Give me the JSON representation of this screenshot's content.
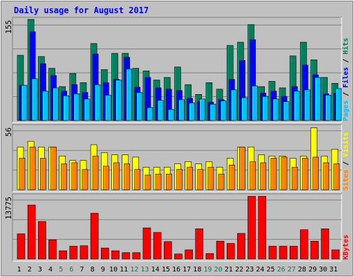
{
  "title": "Daily usage for August 2017",
  "colors": {
    "background": "#C0C0C0",
    "plot_bg": "#C0C0C0",
    "title": "#0000FF",
    "hits": "#00805C",
    "files": "#0000FF",
    "pages": "#00C0FF",
    "visits": "#FFFF00",
    "sites": "#FF8000",
    "kbytes": "#FF0000",
    "weekend_label": "#00805C",
    "weekday_label": "#000000"
  },
  "panels": {
    "top": {
      "max_label": "155",
      "legend": [
        "Pages",
        "Files",
        "Hits"
      ]
    },
    "middle": {
      "max_label": "56",
      "legend": [
        "Sites",
        "Visits"
      ]
    },
    "bottom": {
      "max_label": "13775",
      "legend": [
        "KBytes"
      ]
    }
  },
  "chart_data": {
    "type": "bar",
    "title": "Daily usage for August 2017",
    "categories": [
      "1",
      "2",
      "3",
      "4",
      "5",
      "6",
      "7",
      "8",
      "9",
      "10",
      "11",
      "12",
      "13",
      "14",
      "15",
      "16",
      "17",
      "18",
      "19",
      "20",
      "21",
      "22",
      "23",
      "24",
      "25",
      "26",
      "27",
      "28",
      "29",
      "30",
      "31"
    ],
    "weekend_days": [
      "5",
      "6",
      "12",
      "13",
      "19",
      "20",
      "26",
      "27"
    ],
    "panels": [
      {
        "name": "top",
        "ylim": [
          0,
          155
        ],
        "series": [
          {
            "name": "Hits",
            "values": [
              100,
              155,
              98,
              80,
              52,
              72,
              58,
              118,
              78,
              103,
              103,
              80,
              76,
              62,
              66,
              82,
              55,
              40,
              58,
              48,
              115,
              120,
              147,
              52,
              60,
              50,
              99,
              120,
              93,
              66,
              57
            ]
          },
          {
            "name": "Files",
            "values": [
              54,
              136,
              87,
              69,
              45,
              55,
              43,
              102,
              58,
              63,
              97,
              51,
              66,
              50,
              48,
              46,
              34,
              29,
              28,
              32,
              63,
              92,
              124,
              42,
              45,
              37,
              52,
              85,
              70,
              41,
              42
            ]
          },
          {
            "name": "Pages",
            "values": [
              54,
              64,
              45,
              50,
              38,
              41,
              33,
              55,
              39,
              62,
              79,
              43,
              20,
              31,
              17,
              32,
              27,
              33,
              25,
              30,
              47,
              35,
              53,
              37,
              33,
              29,
              45,
              47,
              66,
              39,
              49
            ]
          }
        ]
      },
      {
        "name": "middle",
        "ylim": [
          0,
          56
        ],
        "series": [
          {
            "name": "Visits",
            "values": [
              38,
              43,
              38,
              38,
              30,
              26,
              26,
              40,
              33,
              31,
              31,
              29,
              20,
              20,
              20,
              23,
              25,
              23,
              25,
              20,
              28,
              38,
              38,
              31,
              30,
              30,
              28,
              30,
              55,
              30,
              36
            ]
          },
          {
            "name": "Sites",
            "values": [
              28,
              38,
              28,
              38,
              23,
              24,
              18,
              30,
              21,
              24,
              23,
              18,
              13,
              14,
              14,
              18,
              20,
              18,
              20,
              14,
              22,
              38,
              25,
              24,
              28,
              29,
              20,
              28,
              29,
              24,
              23
            ]
          }
        ]
      },
      {
        "name": "bottom",
        "ylim": [
          0,
          13775
        ],
        "series": [
          {
            "name": "KBytes",
            "values": [
              5500,
              11800,
              8200,
              4200,
              1800,
              2800,
              2900,
              10000,
              2400,
              1800,
              1400,
              1400,
              6800,
              5800,
              3800,
              1100,
              2000,
              6600,
              1200,
              3900,
              3400,
              5600,
              13700,
              13700,
              2800,
              2800,
              2800,
              6400,
              3900,
              6600,
              2000
            ]
          }
        ]
      }
    ]
  }
}
